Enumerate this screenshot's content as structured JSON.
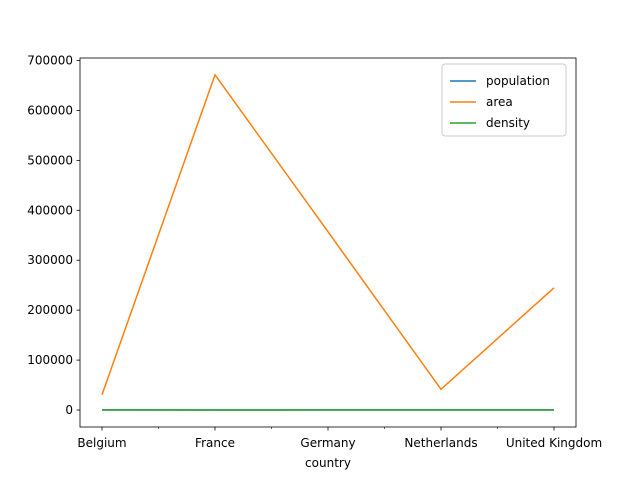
{
  "chart_data": {
    "type": "line",
    "title": "",
    "xlabel": "country",
    "ylabel": "",
    "categories": [
      "Belgium",
      "France",
      "Germany",
      "Netherlands",
      "United Kingdom"
    ],
    "series": [
      {
        "name": "population",
        "color": "#1f77b4",
        "values": [
          11.3,
          64.3,
          81.3,
          16.9,
          64.9
        ]
      },
      {
        "name": "area",
        "color": "#ff7f0e",
        "values": [
          30510,
          671308,
          357050,
          41526,
          244820
        ]
      },
      {
        "name": "density",
        "color": "#2ca02c",
        "values": [
          370,
          96,
          228,
          407,
          265
        ]
      }
    ],
    "ylim": [
      -34000,
      705000
    ],
    "yticks": [
      0,
      100000,
      200000,
      300000,
      400000,
      500000,
      600000,
      700000
    ],
    "ytick_labels": [
      "0",
      "100000",
      "200000",
      "300000",
      "400000",
      "500000",
      "600000",
      "700000"
    ],
    "grid": false,
    "legend": "top-right"
  }
}
